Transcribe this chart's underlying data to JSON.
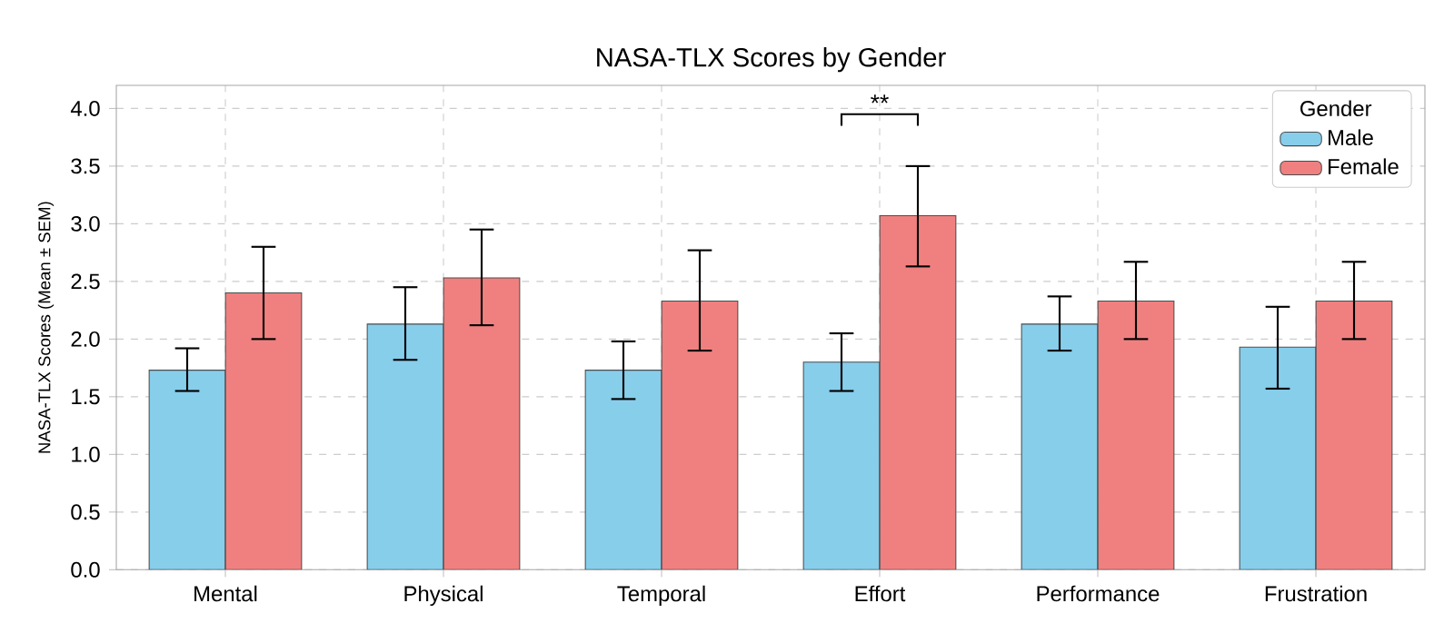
{
  "chart_data": {
    "type": "bar",
    "title": "NASA-TLX Scores by Gender",
    "ylabel": "NASA-TLX Scores (Mean ± SEM)",
    "legend_title": "Gender",
    "categories": [
      "Mental",
      "Physical",
      "Temporal",
      "Effort",
      "Performance",
      "Frustration"
    ],
    "series": [
      {
        "name": "Male",
        "color": "#87ceeb",
        "values": [
          1.73,
          2.13,
          1.73,
          1.8,
          2.13,
          1.93
        ],
        "errors": [
          [
            1.55,
            1.92
          ],
          [
            1.82,
            2.45
          ],
          [
            1.48,
            1.98
          ],
          [
            1.55,
            2.05
          ],
          [
            1.9,
            2.37
          ],
          [
            1.57,
            2.28
          ]
        ]
      },
      {
        "name": "Female",
        "color": "#f08080",
        "values": [
          2.4,
          2.53,
          2.33,
          3.07,
          2.33,
          2.33
        ],
        "errors": [
          [
            2.0,
            2.8
          ],
          [
            2.12,
            2.95
          ],
          [
            1.9,
            2.77
          ],
          [
            2.63,
            3.5
          ],
          [
            2.0,
            2.67
          ],
          [
            2.0,
            2.67
          ]
        ]
      }
    ],
    "ylim": [
      0,
      4.2
    ],
    "yticks": [
      {
        "value": 0,
        "label": "0.0"
      },
      0.5,
      {
        "value": 1,
        "label": "1.0"
      },
      1.5,
      {
        "value": 2,
        "label": "2.0"
      },
      2.5,
      {
        "value": 3,
        "label": "3.0"
      },
      3.5,
      {
        "value": 4,
        "label": "4.0"
      }
    ],
    "annotations": [
      "**"
    ],
    "grid": true,
    "legend": "top right"
  }
}
